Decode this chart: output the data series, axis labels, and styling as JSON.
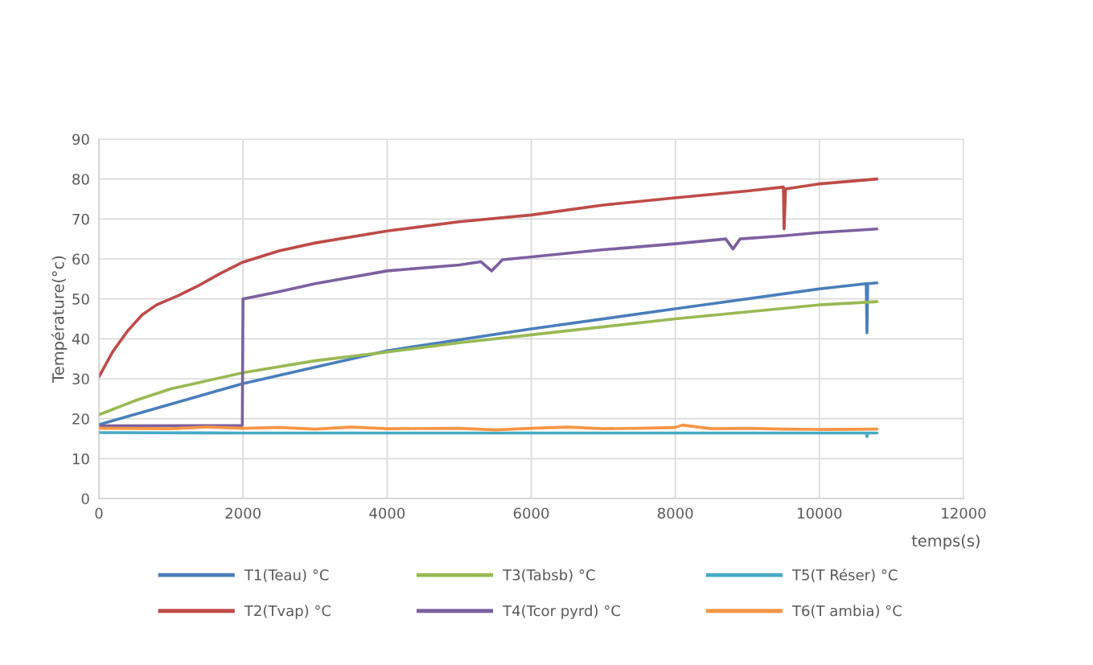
{
  "chart_data": {
    "type": "line",
    "xlabel": "temps(s)",
    "ylabel": "Température(°c)",
    "xlim": [
      0,
      12000
    ],
    "xticks": [
      0,
      2000,
      4000,
      6000,
      8000,
      10000,
      12000
    ],
    "ylim": [
      0,
      90
    ],
    "yticks": [
      0,
      10,
      20,
      30,
      40,
      50,
      60,
      70,
      80,
      90
    ],
    "grid": true,
    "legend": "bottom",
    "marker": "none",
    "line_style": "solid",
    "series": [
      {
        "name": "T1(Teau) °C",
        "color": "#4a7ebb",
        "x": [
          0,
          2000,
          4000,
          6000,
          8000,
          10000,
          10650,
          10660,
          10670,
          10800
        ],
        "values": [
          18.5,
          28.8,
          37,
          42.5,
          47.5,
          52.5,
          53.8,
          41.5,
          53.8,
          54
        ]
      },
      {
        "name": "T2(Tvap) °C",
        "color": "#be4b48",
        "x": [
          0,
          200,
          400,
          600,
          800,
          1100,
          1400,
          1700,
          2000,
          2500,
          3000,
          4000,
          5000,
          6000,
          7000,
          8000,
          9000,
          9500,
          9510,
          9530,
          10000,
          10800
        ],
        "values": [
          30.5,
          37,
          42,
          46,
          48.5,
          50.8,
          53.5,
          56.5,
          59.2,
          62,
          64,
          67,
          69.3,
          71,
          73.5,
          75.3,
          77,
          78,
          67.5,
          77.5,
          78.8,
          80
        ]
      },
      {
        "name": "T3(Tabsb) °C",
        "color": "#98b954",
        "x": [
          0,
          500,
          1000,
          2000,
          3000,
          4000,
          5000,
          6000,
          8000,
          10000,
          10800
        ],
        "values": [
          21,
          24.5,
          27.5,
          31.5,
          34.5,
          36.7,
          39,
          41,
          45,
          48.5,
          49.3
        ]
      },
      {
        "name": "T4(Tcor pyrd) °C",
        "color": "#7d60a0",
        "x": [
          0,
          1990,
          2000,
          2500,
          3000,
          4000,
          5000,
          5300,
          5450,
          5600,
          6000,
          7000,
          8000,
          8700,
          8800,
          8900,
          9500,
          10000,
          10800
        ],
        "values": [
          18.2,
          18.3,
          50,
          51.8,
          53.8,
          57,
          58.5,
          59.3,
          57,
          59.8,
          60.5,
          62.3,
          63.8,
          65,
          62.5,
          65,
          65.8,
          66.6,
          67.5
        ]
      },
      {
        "name": "T5(T Réser) °C",
        "color": "#46aac5",
        "x": [
          0,
          2000,
          6000,
          10000,
          10650,
          10660,
          10670,
          10800
        ],
        "values": [
          16.5,
          16.4,
          16.4,
          16.4,
          16.4,
          15.5,
          16.4,
          16.4
        ]
      },
      {
        "name": "T6(T ambia) °C",
        "color": "#f79646",
        "x": [
          0,
          1000,
          1500,
          2000,
          2500,
          3000,
          3500,
          4000,
          5000,
          5500,
          6000,
          6500,
          7000,
          7500,
          8000,
          8100,
          8500,
          9000,
          9500,
          10000,
          10800
        ],
        "values": [
          17.6,
          17.5,
          17.9,
          17.6,
          17.8,
          17.4,
          17.9,
          17.5,
          17.6,
          17.2,
          17.6,
          17.9,
          17.5,
          17.6,
          17.8,
          18.4,
          17.5,
          17.6,
          17.4,
          17.3,
          17.4
        ]
      }
    ]
  }
}
